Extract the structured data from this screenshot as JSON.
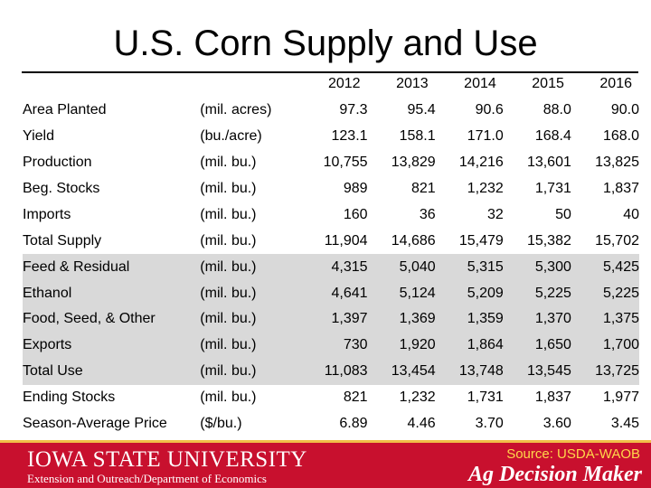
{
  "title": "U.S. Corn Supply and Use",
  "table": {
    "years": [
      "2012",
      "2013",
      "2014",
      "2015",
      "2016"
    ],
    "rows": [
      {
        "label": "Area Planted",
        "unit": "(mil. acres)",
        "values": [
          "97.3",
          "95.4",
          "90.6",
          "88.0",
          "90.0"
        ],
        "shaded": false
      },
      {
        "label": "Yield",
        "unit": "(bu./acre)",
        "values": [
          "123.1",
          "158.1",
          "171.0",
          "168.4",
          "168.0"
        ],
        "shaded": false
      },
      {
        "label": "Production",
        "unit": "(mil. bu.)",
        "values": [
          "10,755",
          "13,829",
          "14,216",
          "13,601",
          "13,825"
        ],
        "shaded": false
      },
      {
        "label": "Beg. Stocks",
        "unit": "(mil. bu.)",
        "values": [
          "989",
          "821",
          "1,232",
          "1,731",
          "1,837"
        ],
        "shaded": false
      },
      {
        "label": "Imports",
        "unit": "(mil. bu.)",
        "values": [
          "160",
          "36",
          "32",
          "50",
          "40"
        ],
        "shaded": false
      },
      {
        "label": "Total Supply",
        "unit": "(mil. bu.)",
        "values": [
          "11,904",
          "14,686",
          "15,479",
          "15,382",
          "15,702"
        ],
        "shaded": false
      },
      {
        "label": "Feed & Residual",
        "unit": "(mil. bu.)",
        "values": [
          "4,315",
          "5,040",
          "5,315",
          "5,300",
          "5,425"
        ],
        "shaded": true
      },
      {
        "label": "Ethanol",
        "unit": "(mil. bu.)",
        "values": [
          "4,641",
          "5,124",
          "5,209",
          "5,225",
          "5,225"
        ],
        "shaded": true
      },
      {
        "label": "Food, Seed, & Other",
        "unit": "(mil. bu.)",
        "values": [
          "1,397",
          "1,369",
          "1,359",
          "1,370",
          "1,375"
        ],
        "shaded": true
      },
      {
        "label": "Exports",
        "unit": "(mil. bu.)",
        "values": [
          "730",
          "1,920",
          "1,864",
          "1,650",
          "1,700"
        ],
        "shaded": true
      },
      {
        "label": "Total Use",
        "unit": "(mil. bu.)",
        "values": [
          "11,083",
          "13,454",
          "13,748",
          "13,545",
          "13,725"
        ],
        "shaded": true
      },
      {
        "label": "Ending Stocks",
        "unit": "(mil. bu.)",
        "values": [
          "821",
          "1,232",
          "1,731",
          "1,837",
          "1,977"
        ],
        "shaded": false
      },
      {
        "label": "Season-Average Price",
        "unit": "($/bu.)",
        "values": [
          "6.89",
          "4.46",
          "3.70",
          "3.60",
          "3.45"
        ],
        "shaded": false
      }
    ]
  },
  "footer": {
    "university": "IOWA STATE UNIVERSITY",
    "department": "Extension and Outreach/Department of Economics",
    "source": "Source: USDA-WAOB",
    "brand": "Ag Decision Maker"
  },
  "colors": {
    "footer_bg": "#c8102e",
    "shaded_row": "#d9d9d9",
    "source_text": "#ffd84a"
  }
}
